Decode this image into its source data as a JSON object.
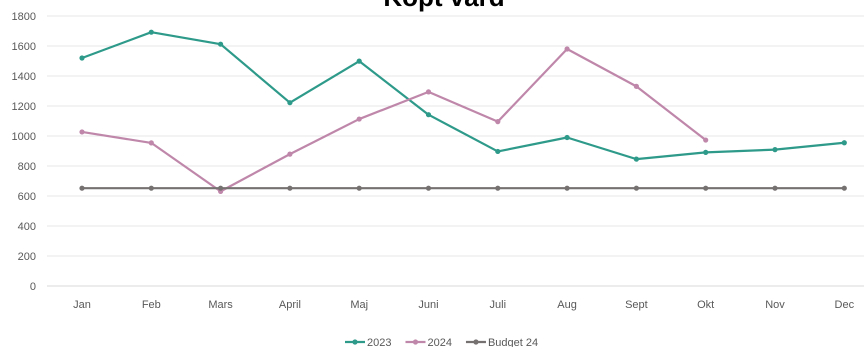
{
  "chart_data": {
    "type": "line",
    "title": "Köpt värd",
    "categories": [
      "Jan",
      "Feb",
      "Mars",
      "April",
      "Maj",
      "Juni",
      "Juli",
      "Aug",
      "Sept",
      "Okt",
      "Nov",
      "Dec"
    ],
    "ylim": [
      0,
      1800
    ],
    "yticks": [
      0,
      200,
      400,
      600,
      800,
      1000,
      1200,
      1400,
      1600,
      1800
    ],
    "grid": true,
    "legend_position": "bottom",
    "series": [
      {
        "name": "2023",
        "color": "#2e9a8a",
        "values": [
          1520,
          1692,
          1612,
          1222,
          1499,
          1142,
          897,
          990,
          846,
          891,
          909,
          955
        ]
      },
      {
        "name": "2024",
        "color": "#bf87aa",
        "values": [
          1027,
          954,
          631,
          879,
          1113,
          1294,
          1096,
          1580,
          1331,
          973,
          null,
          null
        ]
      },
      {
        "name": "Budget 24",
        "color": "#767171",
        "values": [
          652,
          652,
          652,
          652,
          652,
          652,
          652,
          652,
          652,
          652,
          652,
          652
        ]
      }
    ]
  }
}
